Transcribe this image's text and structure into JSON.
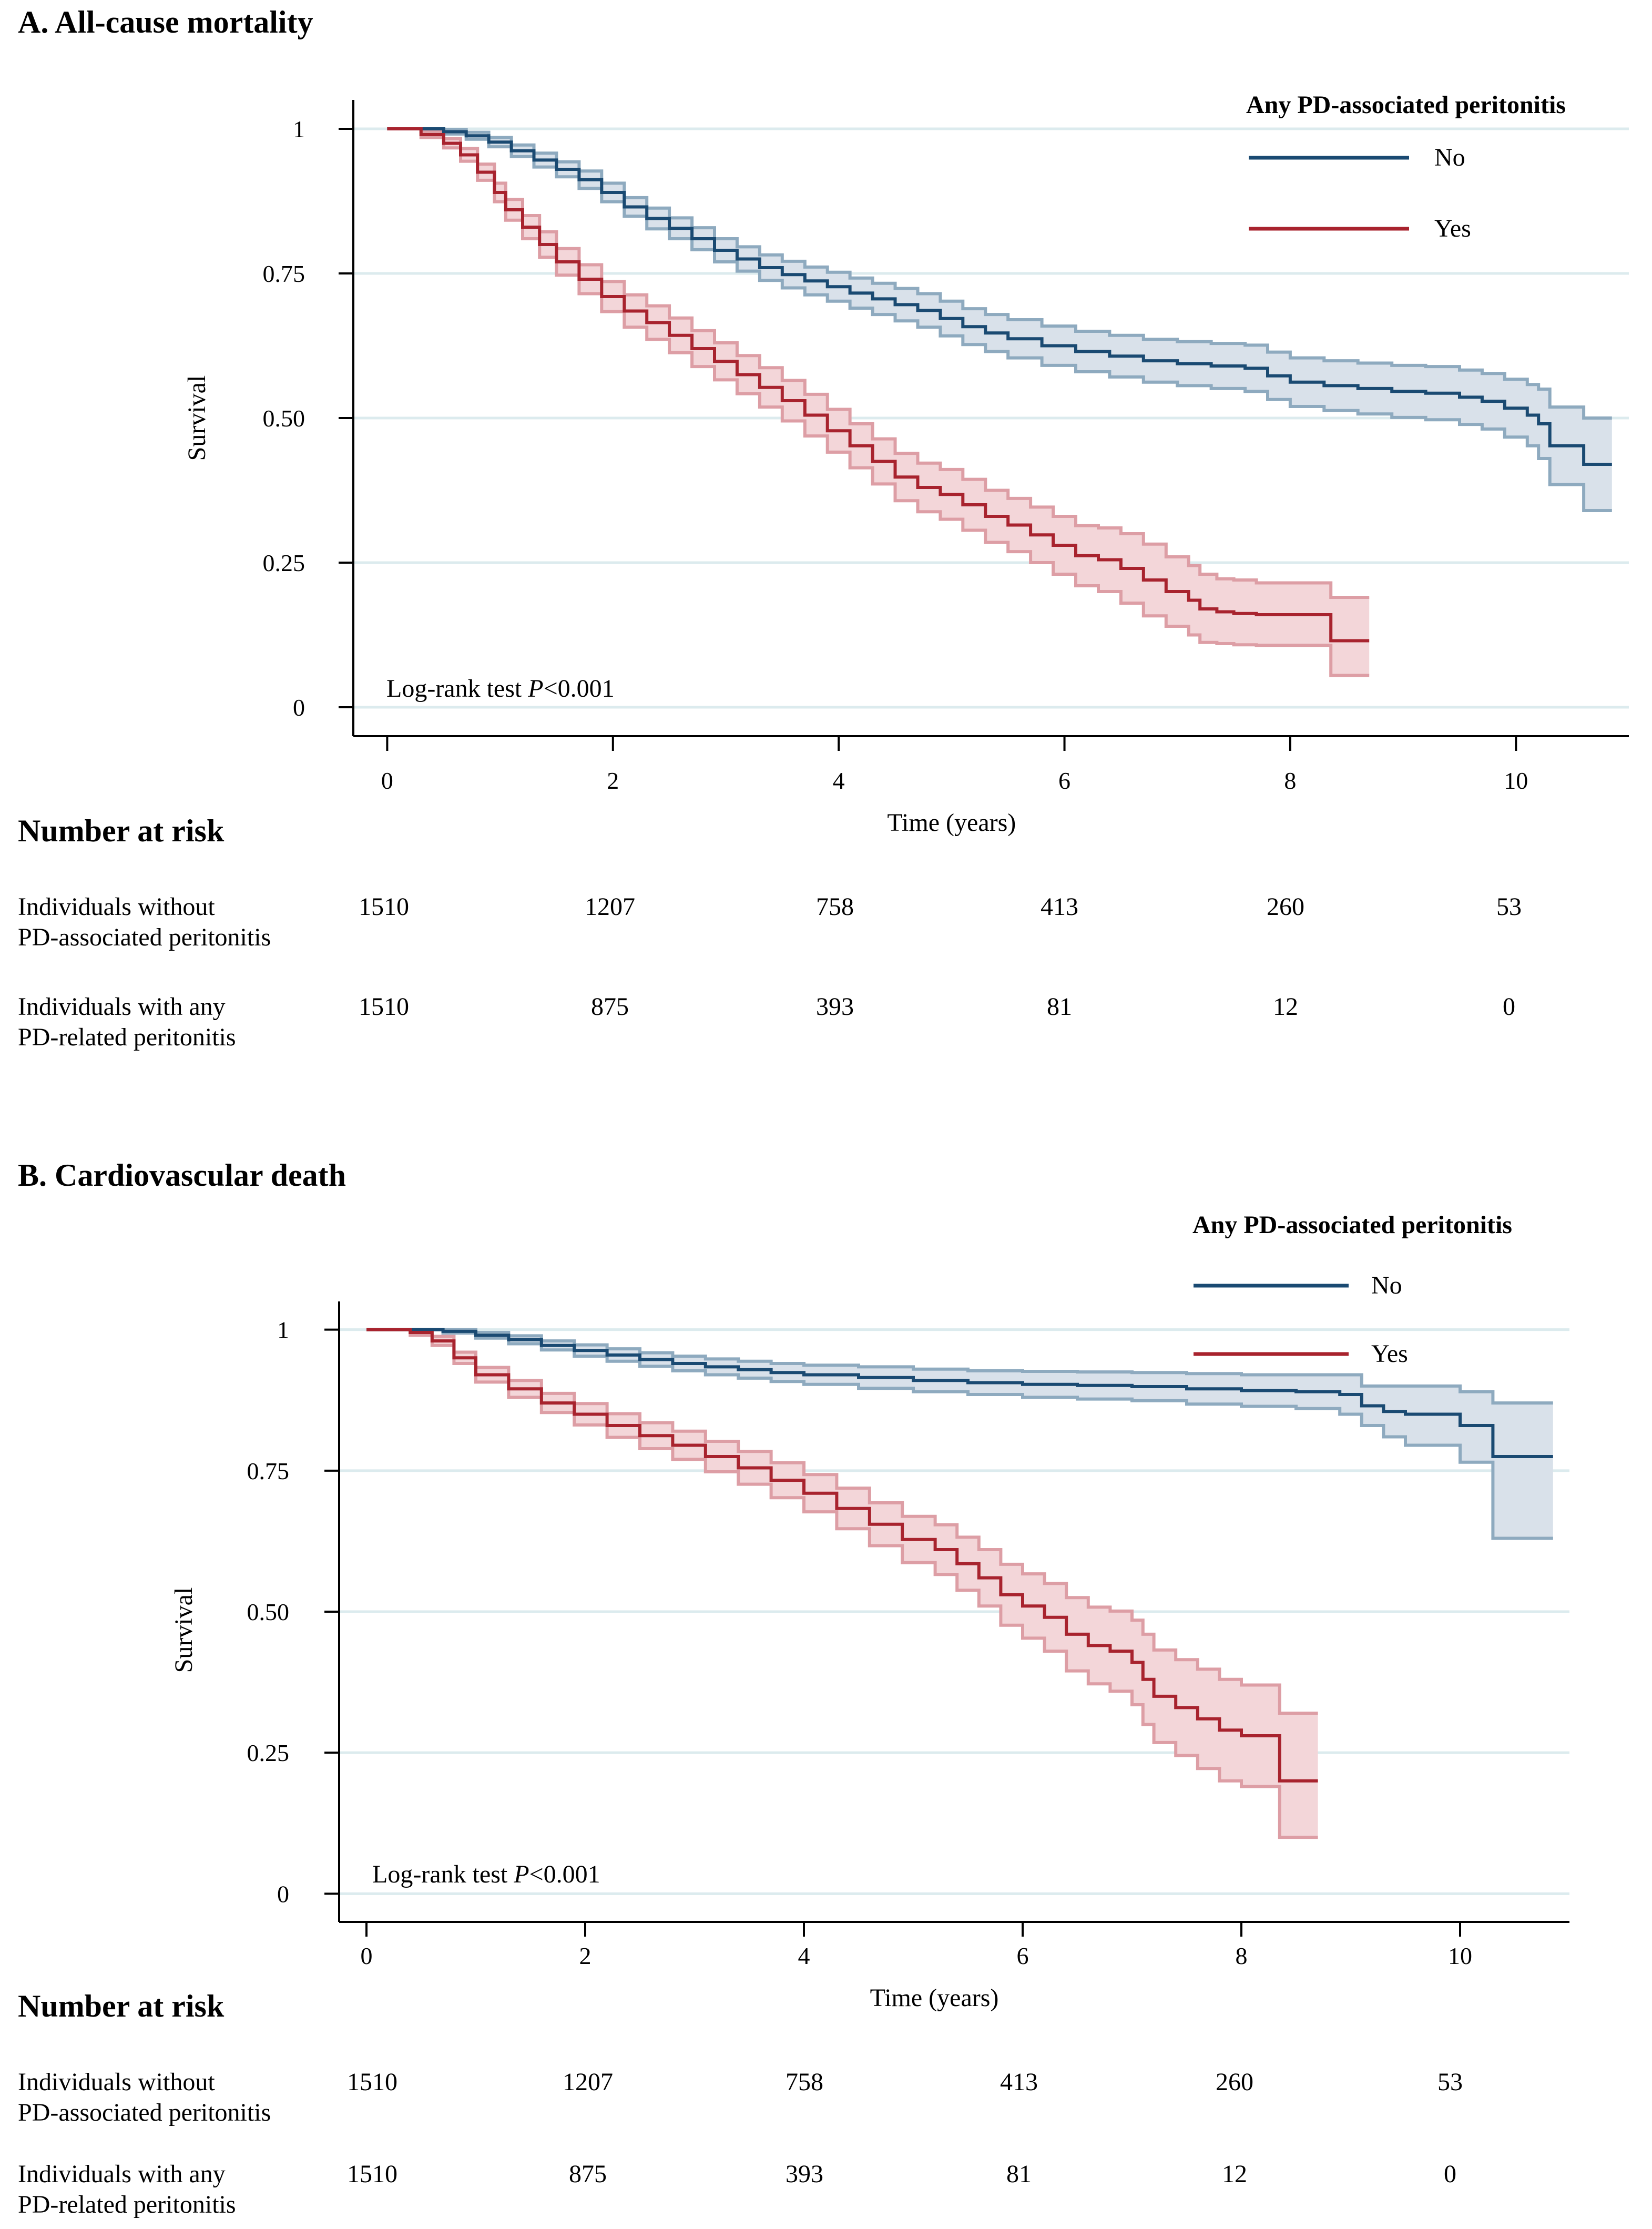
{
  "colors": {
    "no_line": "#1a4a72",
    "no_band_fill": "#d9e1ea",
    "no_band_edge": "#8eaabf",
    "yes_line": "#a8232e",
    "yes_band_fill": "#f3d6d9",
    "yes_band_edge": "#dd9ea5",
    "gridline": "#dcebee",
    "axis": "#000000"
  },
  "chart_data": [
    {
      "panel": "A",
      "type": "line",
      "subtype": "kaplan-meier",
      "title": "A. All-cause mortality",
      "xlabel": "Time (years)",
      "ylabel": "Survival",
      "xlim": [
        -0.3,
        11.0
      ],
      "ylim": [
        -0.05,
        1.05
      ],
      "xticks": [
        0,
        2,
        4,
        6,
        8,
        10
      ],
      "xtick_labels": [
        "0",
        "2",
        "4",
        "6",
        "8",
        "10"
      ],
      "yticks": [
        0,
        0.25,
        0.5,
        0.75,
        1
      ],
      "ytick_labels": [
        "0",
        "0.25",
        "0.50",
        "0.75",
        "1"
      ],
      "grid": "horizontal",
      "legend_title": "Any PD-associated peritonitis",
      "legend_position": "top-right",
      "annotation_prefix": "Log-rank test ",
      "annotation_p": "P",
      "annotation_value": "<0.001",
      "series": [
        {
          "name": "No",
          "color_key": "no",
          "x": [
            0,
            0.3,
            0.5,
            0.7,
            0.9,
            1.1,
            1.3,
            1.5,
            1.7,
            1.9,
            2.1,
            2.3,
            2.5,
            2.7,
            2.9,
            3.1,
            3.3,
            3.5,
            3.7,
            3.9,
            4.1,
            4.3,
            4.5,
            4.7,
            4.9,
            5.1,
            5.3,
            5.5,
            5.8,
            6.1,
            6.4,
            6.7,
            7.0,
            7.3,
            7.6,
            7.8,
            8.0,
            8.3,
            8.6,
            8.9,
            9.2,
            9.5,
            9.7,
            9.9,
            10.1,
            10.2,
            10.3,
            10.6,
            10.85
          ],
          "y": [
            1.0,
            1.0,
            0.995,
            0.988,
            0.977,
            0.962,
            0.946,
            0.93,
            0.912,
            0.89,
            0.865,
            0.845,
            0.828,
            0.81,
            0.79,
            0.775,
            0.76,
            0.748,
            0.737,
            0.727,
            0.716,
            0.706,
            0.696,
            0.686,
            0.672,
            0.658,
            0.647,
            0.637,
            0.625,
            0.615,
            0.607,
            0.599,
            0.594,
            0.59,
            0.586,
            0.573,
            0.562,
            0.556,
            0.551,
            0.546,
            0.543,
            0.536,
            0.529,
            0.517,
            0.505,
            0.49,
            0.452,
            0.42,
            0.42
          ],
          "lower": [
            1.0,
            1.0,
            0.991,
            0.982,
            0.969,
            0.952,
            0.934,
            0.917,
            0.897,
            0.874,
            0.849,
            0.827,
            0.81,
            0.791,
            0.77,
            0.754,
            0.738,
            0.725,
            0.713,
            0.702,
            0.69,
            0.679,
            0.668,
            0.657,
            0.642,
            0.627,
            0.615,
            0.604,
            0.591,
            0.58,
            0.571,
            0.562,
            0.556,
            0.551,
            0.546,
            0.532,
            0.52,
            0.513,
            0.507,
            0.501,
            0.497,
            0.489,
            0.481,
            0.467,
            0.452,
            0.43,
            0.385,
            0.34,
            0.34
          ],
          "upper": [
            1.0,
            1.0,
            0.999,
            0.994,
            0.985,
            0.972,
            0.958,
            0.943,
            0.927,
            0.906,
            0.881,
            0.863,
            0.846,
            0.829,
            0.81,
            0.796,
            0.782,
            0.771,
            0.761,
            0.752,
            0.742,
            0.733,
            0.724,
            0.715,
            0.702,
            0.689,
            0.679,
            0.67,
            0.659,
            0.65,
            0.643,
            0.636,
            0.632,
            0.629,
            0.626,
            0.614,
            0.604,
            0.599,
            0.595,
            0.591,
            0.589,
            0.583,
            0.577,
            0.567,
            0.558,
            0.55,
            0.519,
            0.5,
            0.5
          ]
        },
        {
          "name": "Yes",
          "color_key": "yes",
          "x": [
            0,
            0.3,
            0.5,
            0.65,
            0.8,
            0.95,
            1.05,
            1.2,
            1.35,
            1.5,
            1.7,
            1.9,
            2.1,
            2.3,
            2.5,
            2.7,
            2.9,
            3.1,
            3.3,
            3.5,
            3.7,
            3.9,
            4.1,
            4.3,
            4.5,
            4.7,
            4.9,
            5.1,
            5.3,
            5.5,
            5.7,
            5.9,
            6.1,
            6.3,
            6.5,
            6.7,
            6.9,
            7.1,
            7.2,
            7.35,
            7.5,
            7.7,
            8.0,
            8.35,
            8.36,
            8.7
          ],
          "y": [
            1.0,
            0.99,
            0.975,
            0.955,
            0.925,
            0.89,
            0.86,
            0.83,
            0.8,
            0.77,
            0.74,
            0.71,
            0.685,
            0.665,
            0.643,
            0.62,
            0.598,
            0.575,
            0.553,
            0.53,
            0.505,
            0.478,
            0.452,
            0.425,
            0.398,
            0.38,
            0.368,
            0.35,
            0.33,
            0.315,
            0.298,
            0.28,
            0.262,
            0.255,
            0.24,
            0.22,
            0.2,
            0.185,
            0.17,
            0.165,
            0.162,
            0.16,
            0.16,
            0.16,
            0.115,
            0.115
          ],
          "lower": [
            1.0,
            0.985,
            0.967,
            0.944,
            0.911,
            0.874,
            0.842,
            0.81,
            0.778,
            0.747,
            0.715,
            0.684,
            0.657,
            0.636,
            0.613,
            0.589,
            0.566,
            0.542,
            0.519,
            0.495,
            0.469,
            0.441,
            0.414,
            0.386,
            0.357,
            0.338,
            0.325,
            0.306,
            0.285,
            0.269,
            0.25,
            0.23,
            0.21,
            0.2,
            0.18,
            0.158,
            0.14,
            0.125,
            0.112,
            0.11,
            0.108,
            0.107,
            0.107,
            0.107,
            0.055,
            0.055
          ],
          "upper": [
            1.0,
            0.995,
            0.983,
            0.966,
            0.939,
            0.906,
            0.878,
            0.85,
            0.822,
            0.793,
            0.765,
            0.736,
            0.713,
            0.694,
            0.673,
            0.651,
            0.63,
            0.608,
            0.587,
            0.565,
            0.541,
            0.515,
            0.49,
            0.464,
            0.439,
            0.422,
            0.411,
            0.394,
            0.375,
            0.361,
            0.346,
            0.33,
            0.314,
            0.31,
            0.3,
            0.282,
            0.26,
            0.245,
            0.23,
            0.222,
            0.22,
            0.215,
            0.215,
            0.215,
            0.19,
            0.19
          ]
        }
      ],
      "risk_table": {
        "title": "Number at risk",
        "times": [
          0,
          2,
          4,
          6,
          8,
          10
        ],
        "rows": [
          {
            "label_line1": "Individuals without",
            "label_line2": "PD-associated peritonitis",
            "values": [
              "1510",
              "1207",
              "758",
              "413",
              "260",
              "53"
            ]
          },
          {
            "label_line1": "Individuals with any",
            "label_line2": "PD-related peritonitis",
            "values": [
              "1510",
              "875",
              "393",
              "81",
              "12",
              "0"
            ]
          }
        ]
      }
    },
    {
      "panel": "B",
      "type": "line",
      "subtype": "kaplan-meier",
      "title": "B. Cardiovascular death",
      "xlabel": "Time (years)",
      "ylabel": "Survival",
      "xlim": [
        -0.25,
        11.0
      ],
      "ylim": [
        -0.05,
        1.05
      ],
      "xticks": [
        0,
        2,
        4,
        6,
        8,
        10
      ],
      "xtick_labels": [
        "0",
        "2",
        "4",
        "6",
        "8",
        "10"
      ],
      "yticks": [
        0,
        0.25,
        0.5,
        0.75,
        1
      ],
      "ytick_labels": [
        "0",
        "0.25",
        "0.50",
        "0.75",
        "1"
      ],
      "grid": "horizontal",
      "legend_title": "Any PD-associated peritonitis",
      "legend_position": "top-right",
      "annotation_prefix": "Log-rank test ",
      "annotation_p": "P",
      "annotation_value": "<0.001",
      "series": [
        {
          "name": "No",
          "color_key": "no",
          "x": [
            0,
            0.4,
            0.7,
            1.0,
            1.3,
            1.6,
            1.9,
            2.2,
            2.5,
            2.8,
            3.1,
            3.4,
            3.7,
            4.0,
            4.5,
            5.0,
            5.5,
            6.0,
            6.5,
            7.0,
            7.5,
            8.0,
            8.5,
            8.9,
            9.1,
            9.3,
            9.5,
            10.0,
            10.25,
            10.3,
            10.85
          ],
          "y": [
            1.0,
            1.0,
            0.997,
            0.99,
            0.982,
            0.972,
            0.963,
            0.955,
            0.947,
            0.94,
            0.934,
            0.929,
            0.924,
            0.92,
            0.915,
            0.91,
            0.906,
            0.903,
            0.901,
            0.899,
            0.895,
            0.892,
            0.89,
            0.885,
            0.865,
            0.855,
            0.85,
            0.83,
            0.83,
            0.775,
            0.775
          ],
          "lower": [
            1.0,
            1.0,
            0.994,
            0.985,
            0.975,
            0.964,
            0.953,
            0.944,
            0.935,
            0.927,
            0.92,
            0.914,
            0.908,
            0.903,
            0.896,
            0.89,
            0.885,
            0.88,
            0.877,
            0.874,
            0.868,
            0.864,
            0.86,
            0.85,
            0.83,
            0.81,
            0.795,
            0.765,
            0.765,
            0.63,
            0.63
          ],
          "upper": [
            1.0,
            1.0,
            1.0,
            0.995,
            0.989,
            0.98,
            0.973,
            0.966,
            0.959,
            0.953,
            0.948,
            0.944,
            0.94,
            0.937,
            0.934,
            0.93,
            0.927,
            0.926,
            0.925,
            0.924,
            0.922,
            0.92,
            0.92,
            0.92,
            0.9,
            0.9,
            0.9,
            0.89,
            0.89,
            0.87,
            0.87
          ]
        },
        {
          "name": "Yes",
          "color_key": "yes",
          "x": [
            0,
            0.4,
            0.6,
            0.8,
            1.0,
            1.3,
            1.6,
            1.9,
            2.2,
            2.5,
            2.8,
            3.1,
            3.4,
            3.7,
            4.0,
            4.3,
            4.6,
            4.9,
            5.2,
            5.4,
            5.6,
            5.8,
            6.0,
            6.2,
            6.4,
            6.6,
            6.8,
            7.0,
            7.1,
            7.2,
            7.4,
            7.6,
            7.8,
            8.0,
            8.3,
            8.35,
            8.7
          ],
          "y": [
            1.0,
            0.995,
            0.98,
            0.95,
            0.92,
            0.895,
            0.87,
            0.85,
            0.83,
            0.812,
            0.795,
            0.775,
            0.755,
            0.733,
            0.71,
            0.683,
            0.655,
            0.628,
            0.61,
            0.585,
            0.56,
            0.53,
            0.51,
            0.49,
            0.46,
            0.44,
            0.43,
            0.41,
            0.38,
            0.35,
            0.33,
            0.31,
            0.29,
            0.28,
            0.28,
            0.2,
            0.2
          ],
          "lower": [
            1.0,
            0.99,
            0.972,
            0.94,
            0.907,
            0.88,
            0.853,
            0.831,
            0.809,
            0.789,
            0.77,
            0.748,
            0.726,
            0.702,
            0.677,
            0.647,
            0.617,
            0.587,
            0.566,
            0.538,
            0.51,
            0.476,
            0.453,
            0.43,
            0.395,
            0.372,
            0.359,
            0.335,
            0.3,
            0.268,
            0.245,
            0.222,
            0.2,
            0.19,
            0.19,
            0.1,
            0.1
          ],
          "upper": [
            1.0,
            1.0,
            0.988,
            0.96,
            0.933,
            0.91,
            0.887,
            0.869,
            0.851,
            0.835,
            0.82,
            0.802,
            0.784,
            0.764,
            0.743,
            0.719,
            0.693,
            0.669,
            0.654,
            0.632,
            0.61,
            0.584,
            0.567,
            0.55,
            0.525,
            0.508,
            0.501,
            0.485,
            0.46,
            0.432,
            0.415,
            0.398,
            0.38,
            0.37,
            0.37,
            0.32,
            0.32
          ]
        }
      ],
      "risk_table": {
        "title": "Number at risk",
        "times": [
          0,
          2,
          4,
          6,
          8,
          10
        ],
        "rows": [
          {
            "label_line1": "Individuals without",
            "label_line2": "PD-associated peritonitis",
            "values": [
              "1510",
              "1207",
              "758",
              "413",
              "260",
              "53"
            ]
          },
          {
            "label_line1": "Individuals with any",
            "label_line2": "PD-related peritonitis",
            "values": [
              "1510",
              "875",
              "393",
              "81",
              "12",
              "0"
            ]
          }
        ]
      }
    }
  ]
}
